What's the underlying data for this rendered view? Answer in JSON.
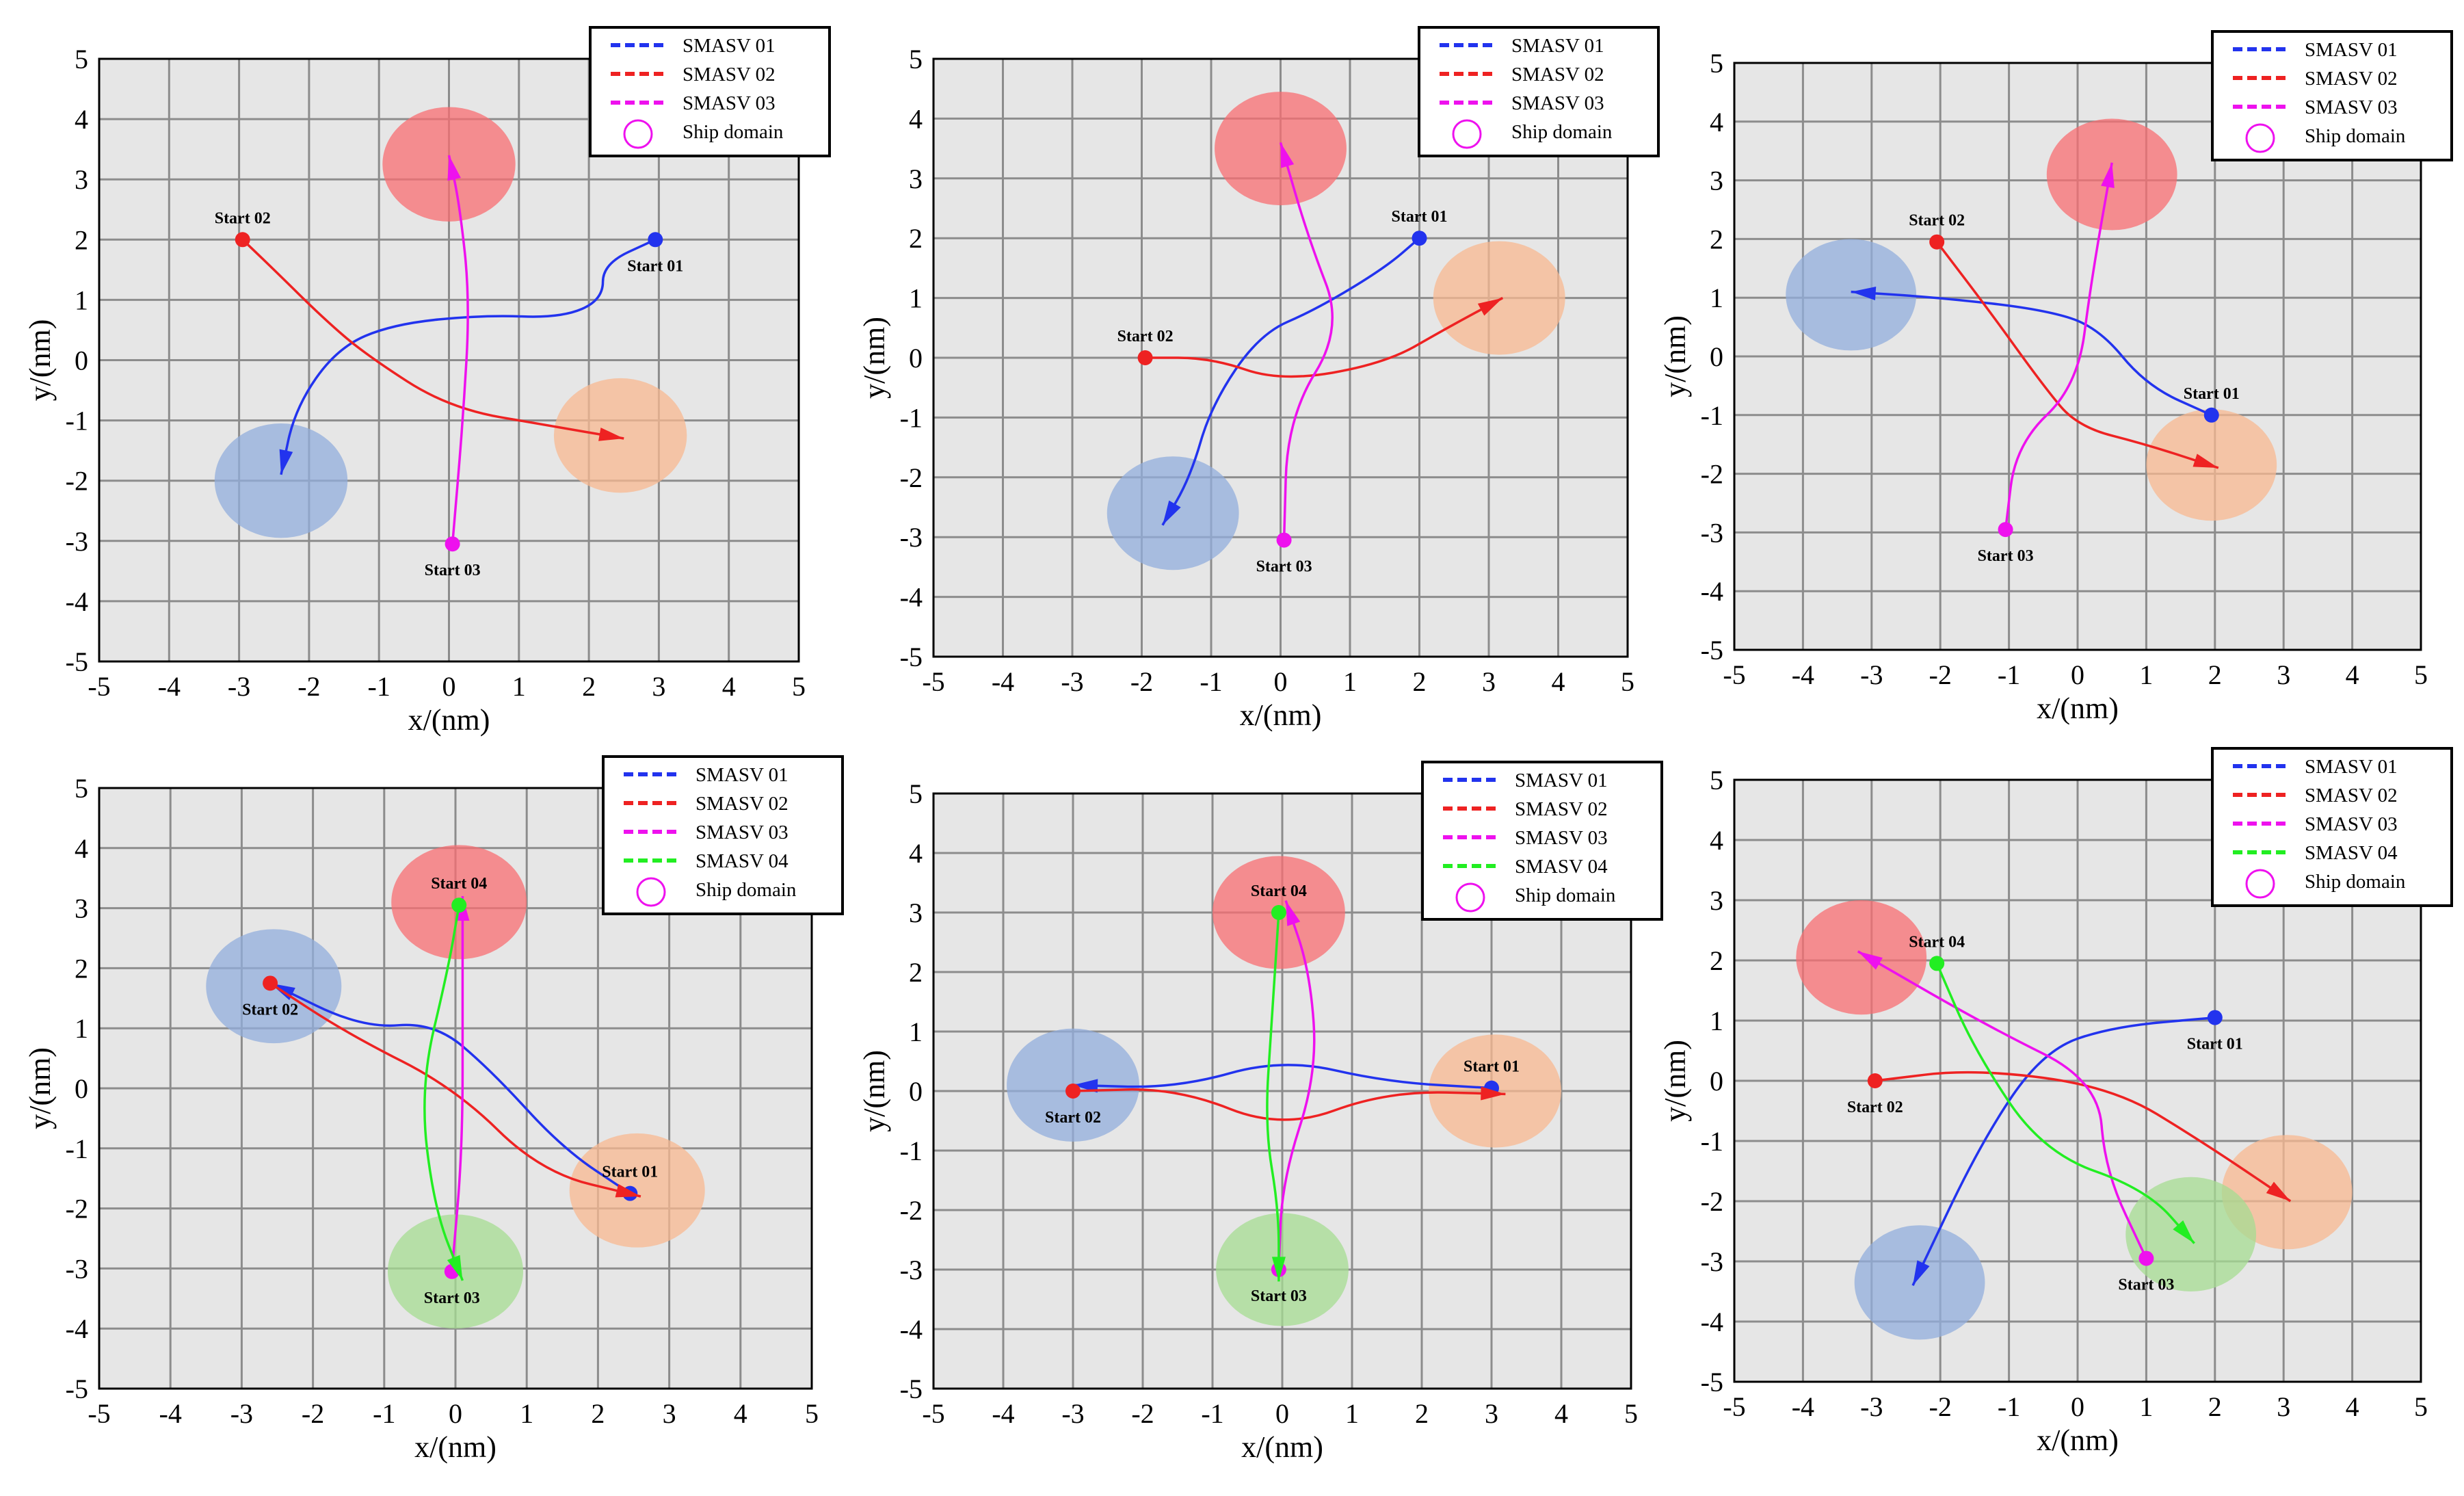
{
  "figure": {
    "xlabel": "x/(nm)",
    "ylabel": "y/(nm)",
    "ticks": [
      "-5",
      "-4",
      "-3",
      "-2",
      "-1",
      "0",
      "1",
      "2",
      "3",
      "4",
      "5"
    ]
  },
  "chart_data": [
    {
      "type": "line",
      "title": "",
      "xlabel": "x/(nm)",
      "ylabel": "y/(nm)",
      "xlim": [
        -5,
        5
      ],
      "ylim": [
        -5,
        5
      ],
      "grid": true,
      "legend": {
        "placement": "top-right",
        "entries": [
          "SMASV 01",
          "SMASV 02",
          "SMASV 03",
          "Ship domain"
        ]
      },
      "series": [
        {
          "name": "SMASV 01",
          "color": "#2233ee",
          "start_label": "Start 01",
          "label_anchor": "below",
          "points": [
            [
              2.95,
              2
            ],
            [
              2.2,
              1.6
            ],
            [
              2.2,
              1
            ],
            [
              1.6,
              0.7
            ],
            [
              0.5,
              0.75
            ],
            [
              -0.8,
              0.6
            ],
            [
              -1.6,
              0.2
            ],
            [
              -2.2,
              -0.8
            ],
            [
              -2.4,
              -1.9
            ]
          ]
        },
        {
          "name": "SMASV 02",
          "color": "#ee2222",
          "start_label": "Start 02",
          "label_anchor": "above",
          "points": [
            [
              -2.95,
              2
            ],
            [
              -2.5,
              1.5
            ],
            [
              -1.8,
              0.7
            ],
            [
              -1.2,
              0.1
            ],
            [
              0,
              -0.8
            ],
            [
              1.5,
              -1.1
            ],
            [
              2.5,
              -1.3
            ]
          ]
        },
        {
          "name": "SMASV 03",
          "color": "#ee11ee",
          "start_label": "Start 03",
          "label_anchor": "below",
          "points": [
            [
              0.05,
              -3.05
            ],
            [
              0.2,
              -1
            ],
            [
              0.3,
              1
            ],
            [
              0.15,
              2.6
            ],
            [
              0,
              3.4
            ]
          ]
        }
      ],
      "domains": [
        {
          "x": 0,
          "y": 3.25,
          "r": 0.95,
          "color": "#f86e72"
        },
        {
          "x": 2.45,
          "y": -1.25,
          "r": 0.95,
          "color": "#f8b890"
        },
        {
          "x": -2.4,
          "y": -2,
          "r": 0.95,
          "color": "#92aedc"
        }
      ]
    },
    {
      "type": "line",
      "title": "",
      "xlabel": "x/(nm)",
      "ylabel": "y/(nm)",
      "xlim": [
        -5,
        5
      ],
      "ylim": [
        -5,
        5
      ],
      "grid": true,
      "legend": {
        "placement": "top-right",
        "entries": [
          "SMASV 01",
          "SMASV 02",
          "SMASV 03",
          "Ship domain"
        ]
      },
      "series": [
        {
          "name": "SMASV 01",
          "color": "#2233ee",
          "start_label": "Start 01",
          "label_anchor": "above",
          "points": [
            [
              2,
              2
            ],
            [
              1.5,
              1.5
            ],
            [
              0.5,
              0.8
            ],
            [
              -0.3,
              0.4
            ],
            [
              -1,
              -0.8
            ],
            [
              -1.3,
              -2
            ],
            [
              -1.7,
              -2.8
            ]
          ]
        },
        {
          "name": "SMASV 02",
          "color": "#ee2222",
          "start_label": "Start 02",
          "label_anchor": "above",
          "points": [
            [
              -1.95,
              0
            ],
            [
              -1,
              0
            ],
            [
              0,
              -0.4
            ],
            [
              1.5,
              -0.1
            ],
            [
              2.4,
              0.5
            ],
            [
              3.2,
              1
            ]
          ]
        },
        {
          "name": "SMASV 03",
          "color": "#ee11ee",
          "start_label": "Start 03",
          "label_anchor": "below",
          "points": [
            [
              0.05,
              -3.05
            ],
            [
              0.1,
              -1
            ],
            [
              0.9,
              0.5
            ],
            [
              0.4,
              2
            ],
            [
              0,
              3.6
            ]
          ]
        }
      ],
      "domains": [
        {
          "x": 0,
          "y": 3.5,
          "r": 0.95,
          "color": "#f86e72"
        },
        {
          "x": 3.15,
          "y": 1,
          "r": 0.95,
          "color": "#f8b890"
        },
        {
          "x": -1.55,
          "y": -2.6,
          "r": 0.95,
          "color": "#92aedc"
        }
      ]
    },
    {
      "type": "line",
      "title": "",
      "xlabel": "x/(nm)",
      "ylabel": "y/(nm)",
      "xlim": [
        -5,
        5
      ],
      "ylim": [
        -5,
        5
      ],
      "grid": true,
      "legend": {
        "placement": "top-right",
        "entries": [
          "SMASV 01",
          "SMASV 02",
          "SMASV 03",
          "Ship domain"
        ]
      },
      "series": [
        {
          "name": "SMASV 01",
          "color": "#2233ee",
          "start_label": "Start 01",
          "label_anchor": "above",
          "points": [
            [
              1.95,
              -1
            ],
            [
              1,
              -0.5
            ],
            [
              0.3,
              0.5
            ],
            [
              -0.5,
              0.8
            ],
            [
              -2,
              1
            ],
            [
              -3.3,
              1.1
            ]
          ]
        },
        {
          "name": "SMASV 02",
          "color": "#ee2222",
          "start_label": "Start 02",
          "label_anchor": "above",
          "points": [
            [
              -2.05,
              1.95
            ],
            [
              -1.3,
              0.8
            ],
            [
              -0.5,
              -0.5
            ],
            [
              0,
              -1.2
            ],
            [
              1,
              -1.5
            ],
            [
              2.05,
              -1.9
            ]
          ]
        },
        {
          "name": "SMASV 03",
          "color": "#ee11ee",
          "start_label": "Start 03",
          "label_anchor": "below",
          "points": [
            [
              -1.05,
              -2.95
            ],
            [
              -0.9,
              -1.5
            ],
            [
              0,
              -0.5
            ],
            [
              0.2,
              1.3
            ],
            [
              0.5,
              3.3
            ]
          ]
        }
      ],
      "domains": [
        {
          "x": 0.5,
          "y": 3.1,
          "r": 0.95,
          "color": "#f86e72"
        },
        {
          "x": 1.95,
          "y": -1.85,
          "r": 0.95,
          "color": "#f8b890"
        },
        {
          "x": -3.3,
          "y": 1.05,
          "r": 0.95,
          "color": "#92aedc"
        }
      ]
    },
    {
      "type": "line",
      "title": "",
      "xlabel": "x/(nm)",
      "ylabel": "y/(nm)",
      "xlim": [
        -5,
        5
      ],
      "ylim": [
        -5,
        5
      ],
      "grid": true,
      "legend": {
        "placement": "top-right",
        "entries": [
          "SMASV 01",
          "SMASV 02",
          "SMASV 03",
          "SMASV 04",
          "Ship domain"
        ]
      },
      "series": [
        {
          "name": "SMASV 01",
          "color": "#2233ee",
          "start_label": "Start 01",
          "label_anchor": "above",
          "points": [
            [
              2.45,
              -1.75
            ],
            [
              1.5,
              -1
            ],
            [
              0.5,
              0.3
            ],
            [
              -0.3,
              1.1
            ],
            [
              -1.3,
              1
            ],
            [
              -2.6,
              1.75
            ]
          ]
        },
        {
          "name": "SMASV 02",
          "color": "#ee2222",
          "start_label": "Start 02",
          "label_anchor": "below",
          "points": [
            [
              -2.6,
              1.75
            ],
            [
              -1.5,
              0.9
            ],
            [
              0,
              0
            ],
            [
              1.2,
              -1.4
            ],
            [
              2.6,
              -1.8
            ]
          ]
        },
        {
          "name": "SMASV 03",
          "color": "#ee11ee",
          "start_label": "Start 03",
          "label_anchor": "below",
          "points": [
            [
              -0.05,
              -3.05
            ],
            [
              0.1,
              -1
            ],
            [
              0.1,
              1.5
            ],
            [
              0.1,
              3.2
            ]
          ]
        },
        {
          "name": "SMASV 04",
          "color": "#22ee22",
          "start_label": "Start 04",
          "label_anchor": "above",
          "points": [
            [
              0.05,
              3.05
            ],
            [
              -0.1,
              2
            ],
            [
              -0.5,
              0
            ],
            [
              -0.3,
              -2
            ],
            [
              0.1,
              -3.2
            ]
          ]
        }
      ],
      "domains": [
        {
          "x": 0.05,
          "y": 3.1,
          "r": 0.95,
          "color": "#f86e72"
        },
        {
          "x": 2.55,
          "y": -1.7,
          "r": 0.95,
          "color": "#f8b890"
        },
        {
          "x": -2.55,
          "y": 1.7,
          "r": 0.95,
          "color": "#92aedc"
        },
        {
          "x": 0,
          "y": -3.05,
          "r": 0.95,
          "color": "#a6dc92"
        }
      ]
    },
    {
      "type": "line",
      "title": "",
      "xlabel": "x/(nm)",
      "ylabel": "y/(nm)",
      "xlim": [
        -5,
        5
      ],
      "ylim": [
        -5,
        5
      ],
      "grid": true,
      "legend": {
        "placement": "top-right",
        "entries": [
          "SMASV 01",
          "SMASV 02",
          "SMASV 03",
          "SMASV 04",
          "Ship domain"
        ]
      },
      "series": [
        {
          "name": "SMASV 01",
          "color": "#2233ee",
          "start_label": "Start 01",
          "label_anchor": "above",
          "points": [
            [
              3,
              0.05
            ],
            [
              1.5,
              0.15
            ],
            [
              0,
              0.55
            ],
            [
              -1.5,
              0.05
            ],
            [
              -3,
              0.1
            ]
          ]
        },
        {
          "name": "SMASV 02",
          "color": "#ee2222",
          "start_label": "Start 02",
          "label_anchor": "below",
          "points": [
            [
              -3,
              0
            ],
            [
              -1.5,
              0.05
            ],
            [
              0,
              -0.65
            ],
            [
              1.5,
              0
            ],
            [
              3.2,
              -0.05
            ]
          ]
        },
        {
          "name": "SMASV 03",
          "color": "#ee11ee",
          "start_label": "Start 03",
          "label_anchor": "below",
          "points": [
            [
              -0.05,
              -3
            ],
            [
              0,
              -1.5
            ],
            [
              0.5,
              0.3
            ],
            [
              0.4,
              2
            ],
            [
              0.05,
              3.2
            ]
          ]
        },
        {
          "name": "SMASV 04",
          "color": "#22ee22",
          "start_label": "Start 04",
          "label_anchor": "above",
          "points": [
            [
              -0.05,
              3
            ],
            [
              -0.15,
              1.2
            ],
            [
              -0.25,
              -0.6
            ],
            [
              -0.05,
              -2
            ],
            [
              -0.05,
              -3.2
            ]
          ]
        }
      ],
      "domains": [
        {
          "x": -0.05,
          "y": 3,
          "r": 0.95,
          "color": "#f86e72"
        },
        {
          "x": 3.05,
          "y": 0,
          "r": 0.95,
          "color": "#f8b890"
        },
        {
          "x": -3,
          "y": 0.1,
          "r": 0.95,
          "color": "#92aedc"
        },
        {
          "x": 0,
          "y": -3,
          "r": 0.95,
          "color": "#a6dc92"
        }
      ]
    },
    {
      "type": "line",
      "title": "",
      "xlabel": "x/(nm)",
      "ylabel": "y/(nm)",
      "xlim": [
        -5,
        5
      ],
      "ylim": [
        -5,
        5
      ],
      "grid": true,
      "legend": {
        "placement": "top-right",
        "entries": [
          "SMASV 01",
          "SMASV 02",
          "SMASV 03",
          "SMASV 04",
          "Ship domain"
        ]
      },
      "series": [
        {
          "name": "SMASV 01",
          "color": "#2233ee",
          "start_label": "Start 01",
          "label_anchor": "below",
          "points": [
            [
              2,
              1.05
            ],
            [
              0.5,
              0.9
            ],
            [
              -0.5,
              0.5
            ],
            [
              -1.4,
              -1
            ],
            [
              -2.4,
              -3.4
            ]
          ]
        },
        {
          "name": "SMASV 02",
          "color": "#ee2222",
          "start_label": "Start 02",
          "label_anchor": "below",
          "points": [
            [
              -2.95,
              0
            ],
            [
              -1.5,
              0.2
            ],
            [
              0.5,
              -0.1
            ],
            [
              1.8,
              -1
            ],
            [
              3.1,
              -2
            ]
          ]
        },
        {
          "name": "SMASV 03",
          "color": "#ee11ee",
          "start_label": "Start 03",
          "label_anchor": "below",
          "points": [
            [
              1,
              -2.95
            ],
            [
              0.4,
              -1.5
            ],
            [
              0.3,
              0
            ],
            [
              -1.3,
              0.9
            ],
            [
              -3.2,
              2.15
            ]
          ]
        },
        {
          "name": "SMASV 04",
          "color": "#22ee22",
          "start_label": "Start 04",
          "label_anchor": "above",
          "points": [
            [
              -2.05,
              1.95
            ],
            [
              -1.5,
              0.5
            ],
            [
              -0.5,
              -1.2
            ],
            [
              1,
              -1.8
            ],
            [
              1.7,
              -2.7
            ]
          ]
        }
      ],
      "domains": [
        {
          "x": -3.15,
          "y": 2.05,
          "r": 0.95,
          "color": "#f86e72"
        },
        {
          "x": 3.05,
          "y": -1.85,
          "r": 0.95,
          "color": "#f8b890"
        },
        {
          "x": -2.3,
          "y": -3.35,
          "r": 0.95,
          "color": "#92aedc"
        },
        {
          "x": 1.65,
          "y": -2.55,
          "r": 0.95,
          "color": "#a6dc92"
        }
      ]
    }
  ]
}
